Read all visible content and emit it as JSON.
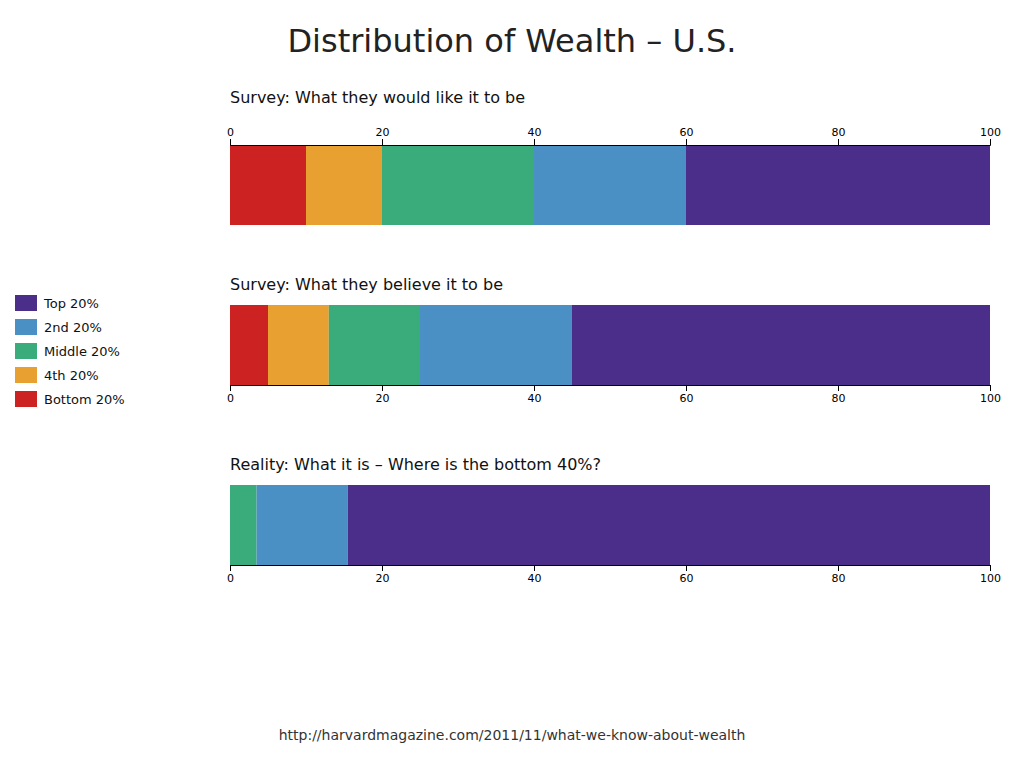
{
  "chart_data": {
    "type": "bar",
    "orientation": "horizontal",
    "stacked": true,
    "title": "Distribution of Wealth – U.S.",
    "annotations": [
      "http://harvardmagazine.com/2011/11/what-we-know-about-wealth"
    ],
    "categories": [
      "Survey: What they would like it to be",
      "Survey: What they believe it to be",
      "Reality: What it is – Where is the bottom 40%?"
    ],
    "series": [
      {
        "name": "Bottom 20%",
        "color": "#cc2222",
        "values": [
          10,
          5,
          0
        ]
      },
      {
        "name": "4th 20%",
        "color": "#e8a030",
        "values": [
          10,
          8,
          0
        ]
      },
      {
        "name": "Middle 20%",
        "color": "#3aab7a",
        "values": [
          20,
          12,
          3.5
        ]
      },
      {
        "name": "2nd 20%",
        "color": "#4a90c4",
        "values": [
          20,
          20,
          12
        ]
      },
      {
        "name": "Top 20%",
        "color": "#4b2d8a",
        "values": [
          40,
          55,
          84.5
        ]
      }
    ],
    "xlim": [
      0,
      100
    ],
    "xticks": [
      0,
      20,
      40,
      60,
      80,
      100
    ],
    "legend": "left",
    "grid": false
  }
}
